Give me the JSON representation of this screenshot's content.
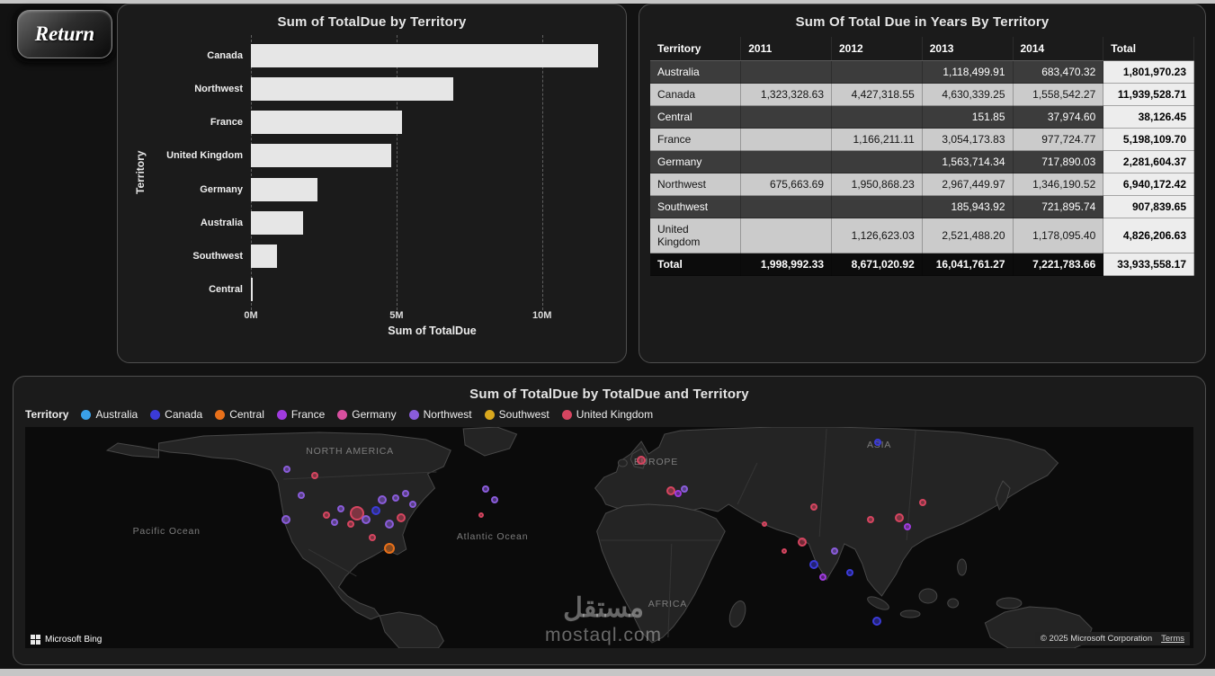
{
  "return_button": {
    "label": "Return"
  },
  "chart_data": [
    {
      "type": "bar",
      "orientation": "horizontal",
      "title": "Sum of TotalDue by Territory",
      "xlabel": "Sum of TotalDue",
      "ylabel": "Territory",
      "categories": [
        "Canada",
        "Northwest",
        "France",
        "United Kingdom",
        "Germany",
        "Australia",
        "Southwest",
        "Central"
      ],
      "values": [
        11939528.71,
        6940172.42,
        5198109.7,
        4826206.63,
        2281604.37,
        1801970.23,
        907839.65,
        38126.45
      ],
      "xlim": [
        0,
        12450000
      ],
      "x_ticks": [
        {
          "label": "0M",
          "value": 0
        },
        {
          "label": "5M",
          "value": 5000000
        },
        {
          "label": "10M",
          "value": 10000000
        }
      ],
      "bar_color": "#e6e6e6",
      "grid": true
    },
    {
      "type": "table",
      "title": "Sum Of Total Due in Years By Territory",
      "columns": [
        "Territory",
        "2011",
        "2012",
        "2013",
        "2014",
        "Total"
      ],
      "rows": [
        [
          "Australia",
          "",
          "",
          "1,118,499.91",
          "683,470.32",
          "1,801,970.23"
        ],
        [
          "Canada",
          "1,323,328.63",
          "4,427,318.55",
          "4,630,339.25",
          "1,558,542.27",
          "11,939,528.71"
        ],
        [
          "Central",
          "",
          "",
          "151.85",
          "37,974.60",
          "38,126.45"
        ],
        [
          "France",
          "",
          "1,166,211.11",
          "3,054,173.83",
          "977,724.77",
          "5,198,109.70"
        ],
        [
          "Germany",
          "",
          "",
          "1,563,714.34",
          "717,890.03",
          "2,281,604.37"
        ],
        [
          "Northwest",
          "675,663.69",
          "1,950,868.23",
          "2,967,449.97",
          "1,346,190.52",
          "6,940,172.42"
        ],
        [
          "Southwest",
          "",
          "",
          "185,943.92",
          "721,895.74",
          "907,839.65"
        ],
        [
          "United Kingdom",
          "",
          "1,126,623.03",
          "2,521,488.20",
          "1,178,095.40",
          "4,826,206.63"
        ]
      ],
      "total_row": [
        "Total",
        "1,998,992.33",
        "8,671,020.92",
        "16,041,761.27",
        "7,221,783.66",
        "33,933,558.17"
      ]
    },
    {
      "type": "scatter-map",
      "title": "Sum of TotalDue by TotalDue and Territory",
      "legend_title": "Territory",
      "legend": [
        {
          "label": "Australia",
          "color": "#3aa0e8"
        },
        {
          "label": "Canada",
          "color": "#3b3bd9"
        },
        {
          "label": "Central",
          "color": "#e8701a"
        },
        {
          "label": "France",
          "color": "#a03bdf"
        },
        {
          "label": "Germany",
          "color": "#d84f9f"
        },
        {
          "label": "Northwest",
          "color": "#8a5cdb"
        },
        {
          "label": "Southwest",
          "color": "#d9a81e"
        },
        {
          "label": "United Kingdom",
          "color": "#d64560"
        }
      ],
      "colors": {
        "ocean": "#0b0b0b",
        "land": "#242424",
        "landline": "#474747"
      },
      "map_labels": [
        {
          "text": "NORTH AMERICA",
          "x": 27.8,
          "y": 11
        },
        {
          "text": "Pacific Ocean",
          "x": 12.1,
          "y": 47
        },
        {
          "text": "Atlantic Ocean",
          "x": 40.0,
          "y": 49.5
        },
        {
          "text": "EUROPE",
          "x": 54.0,
          "y": 16
        },
        {
          "text": "ASIA",
          "x": 73.1,
          "y": 8
        },
        {
          "text": "AFRICA",
          "x": 55.0,
          "y": 80
        }
      ],
      "bubbles": [
        {
          "x": 22.4,
          "y": 19,
          "r": 4,
          "color": "#8a5cdb"
        },
        {
          "x": 24.8,
          "y": 22,
          "r": 4,
          "color": "#d64560"
        },
        {
          "x": 23.6,
          "y": 31,
          "r": 4,
          "color": "#8a5cdb"
        },
        {
          "x": 22.3,
          "y": 42,
          "r": 5,
          "color": "#8a5cdb"
        },
        {
          "x": 25.8,
          "y": 40,
          "r": 4,
          "color": "#d64560"
        },
        {
          "x": 28.4,
          "y": 39,
          "r": 8,
          "color": "#d64560"
        },
        {
          "x": 29.2,
          "y": 42,
          "r": 5,
          "color": "#8a5cdb"
        },
        {
          "x": 30.0,
          "y": 38,
          "r": 5,
          "color": "#3b3bd9"
        },
        {
          "x": 30.6,
          "y": 33,
          "r": 5,
          "color": "#8a5cdb"
        },
        {
          "x": 31.7,
          "y": 32,
          "r": 4,
          "color": "#8a5cdb"
        },
        {
          "x": 32.6,
          "y": 30,
          "r": 4,
          "color": "#8a5cdb"
        },
        {
          "x": 33.2,
          "y": 35,
          "r": 4,
          "color": "#8a5cdb"
        },
        {
          "x": 31.2,
          "y": 44,
          "r": 5,
          "color": "#8a5cdb"
        },
        {
          "x": 32.2,
          "y": 41,
          "r": 5,
          "color": "#d64560"
        },
        {
          "x": 29.7,
          "y": 50,
          "r": 4,
          "color": "#d64560"
        },
        {
          "x": 31.2,
          "y": 55,
          "r": 6,
          "color": "#e8701a"
        },
        {
          "x": 27.9,
          "y": 44,
          "r": 4,
          "color": "#d64560"
        },
        {
          "x": 26.5,
          "y": 43,
          "r": 4,
          "color": "#8a5cdb"
        },
        {
          "x": 27.0,
          "y": 37,
          "r": 4,
          "color": "#8a5cdb"
        },
        {
          "x": 39.4,
          "y": 28,
          "r": 4,
          "color": "#8a5cdb"
        },
        {
          "x": 40.2,
          "y": 33,
          "r": 4,
          "color": "#8a5cdb"
        },
        {
          "x": 39.0,
          "y": 40,
          "r": 3,
          "color": "#d64560"
        },
        {
          "x": 52.7,
          "y": 15,
          "r": 5,
          "color": "#d64560"
        },
        {
          "x": 55.3,
          "y": 29,
          "r": 5,
          "color": "#d64560"
        },
        {
          "x": 55.9,
          "y": 30,
          "r": 4,
          "color": "#a03bdf"
        },
        {
          "x": 56.4,
          "y": 28,
          "r": 4,
          "color": "#8a5cdb"
        },
        {
          "x": 66.5,
          "y": 52,
          "r": 5,
          "color": "#d64560"
        },
        {
          "x": 67.5,
          "y": 62,
          "r": 5,
          "color": "#3b3bd9"
        },
        {
          "x": 68.3,
          "y": 68,
          "r": 4,
          "color": "#a03bdf"
        },
        {
          "x": 69.3,
          "y": 56,
          "r": 4,
          "color": "#8a5cdb"
        },
        {
          "x": 70.6,
          "y": 66,
          "r": 4,
          "color": "#3b3bd9"
        },
        {
          "x": 72.4,
          "y": 42,
          "r": 4,
          "color": "#d64560"
        },
        {
          "x": 74.8,
          "y": 41,
          "r": 5,
          "color": "#d64560"
        },
        {
          "x": 75.5,
          "y": 45,
          "r": 4,
          "color": "#a03bdf"
        },
        {
          "x": 76.8,
          "y": 34,
          "r": 4,
          "color": "#d64560"
        },
        {
          "x": 73.0,
          "y": 7,
          "r": 4,
          "color": "#3b3bd9"
        },
        {
          "x": 67.5,
          "y": 36,
          "r": 4,
          "color": "#d64560"
        },
        {
          "x": 65.0,
          "y": 56,
          "r": 3,
          "color": "#d64560"
        },
        {
          "x": 72.9,
          "y": 88,
          "r": 5,
          "color": "#3b3bd9"
        },
        {
          "x": 63.3,
          "y": 44,
          "r": 3,
          "color": "#d64560"
        }
      ],
      "attribution": {
        "brand": "Microsoft Bing",
        "copyright": "© 2025 Microsoft Corporation",
        "terms": "Terms"
      },
      "watermark": {
        "line1": "مستقل",
        "line2": "mostaql.com"
      }
    }
  ]
}
